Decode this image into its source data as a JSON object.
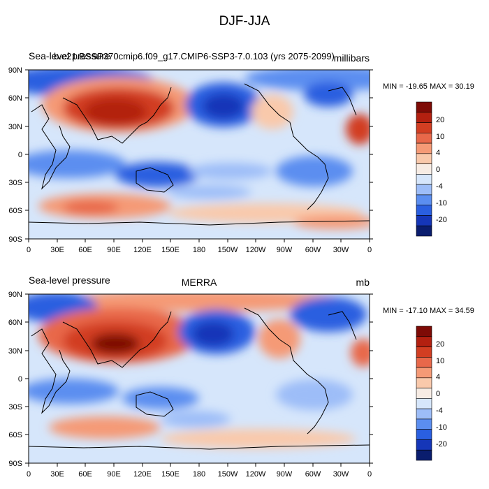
{
  "title": "DJF-JJA",
  "panels": [
    {
      "left_label": "Sea-level pressure",
      "center_label": "b.e21.BSSP370cmip6.f09_g17.CMIP6-SSP3-7.0.103 (yrs 2075-2099)",
      "right_label": "millibars",
      "stats": "MIN = -19.65 MAX =  30.19",
      "colorbar_labels": [
        "20",
        "10",
        "4",
        "0",
        "-4",
        "-10",
        "-20"
      ]
    },
    {
      "left_label": "Sea-level pressure",
      "center_label": "MERRA",
      "right_label": "mb",
      "stats": "MIN = -17.10 MAX =  34.59",
      "colorbar_labels": [
        "20",
        "10",
        "4",
        "0",
        "-4",
        "-10",
        "-20"
      ]
    }
  ],
  "axes": {
    "lat_ticks": [
      "90N",
      "60N",
      "30N",
      "0",
      "30S",
      "60S",
      "90S"
    ],
    "lon_ticks": [
      "0",
      "30E",
      "60E",
      "90E",
      "120E",
      "150E",
      "180",
      "150W",
      "120W",
      "90W",
      "60W",
      "30W",
      "0"
    ]
  },
  "palette": [
    "#0a1d6e",
    "#1536b8",
    "#2a5fe0",
    "#5b8ef0",
    "#9dbdf8",
    "#d6e6fb",
    "#f7ece4",
    "#f9c9ab",
    "#f59a76",
    "#e8684a",
    "#d23e22",
    "#b32010",
    "#7e0b06"
  ],
  "colors": {
    "coast": "#000000",
    "border": "#000000"
  }
}
